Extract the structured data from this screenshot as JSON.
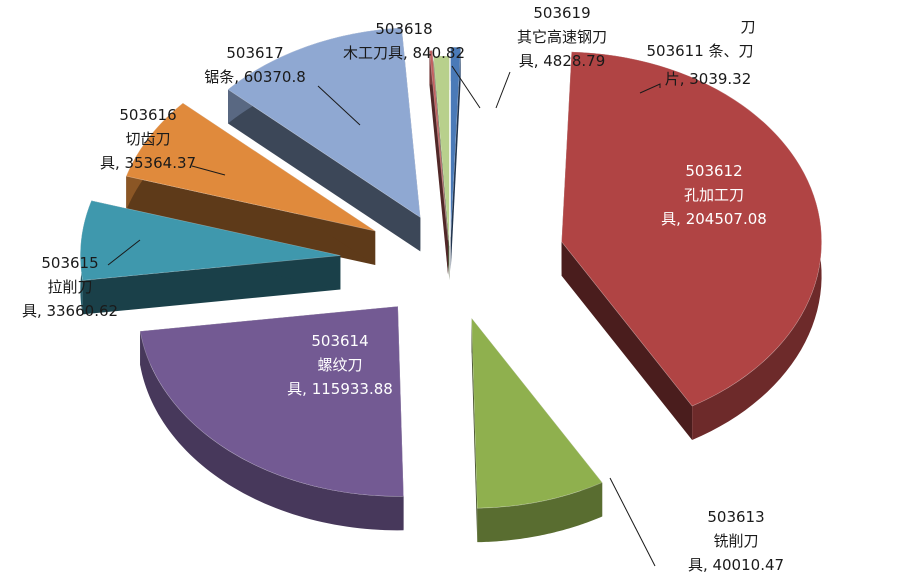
{
  "chart_data": {
    "type": "pie",
    "variant": "3d-exploded",
    "title": "",
    "slices": [
      {
        "code": "503611",
        "name": "刀条、刀片",
        "value": 3039.32,
        "color": "#4a7ab8",
        "label_lines": [
          "刀",
          "503611 条、刀",
          "片, 3039.32"
        ]
      },
      {
        "code": "503612",
        "name": "孔加工刀具",
        "value": 204507.08,
        "color": "#b04444",
        "label_lines": [
          "503612",
          "孔加工刀",
          "具, 204507.08"
        ]
      },
      {
        "code": "503613",
        "name": "铣削刀具",
        "value": 40010.47,
        "color": "#8fb04e",
        "label_lines": [
          "503613",
          "铣削刀",
          "具, 40010.47"
        ]
      },
      {
        "code": "503614",
        "name": "螺纹刀具",
        "value": 115933.88,
        "color": "#735a93",
        "label_lines": [
          "503614",
          "螺纹刀",
          "具, 115933.88"
        ]
      },
      {
        "code": "503615",
        "name": "拉削刀具",
        "value": 33660.62,
        "color": "#3f98ad",
        "label_lines": [
          "503615",
          "拉削刀",
          "具, 33660.62"
        ]
      },
      {
        "code": "503616",
        "name": "切齿刀具",
        "value": 35364.37,
        "color": "#e08a3c",
        "label_lines": [
          "503616",
          "切齿刀",
          "具, 35364.37"
        ]
      },
      {
        "code": "503617",
        "name": "锯条",
        "value": 60370.8,
        "color": "#8fa8d2",
        "label_lines": [
          "503617",
          "锯条, 60370.8"
        ]
      },
      {
        "code": "503618",
        "name": "木工刀具",
        "value": 840.82,
        "color": "#c06060",
        "label_lines": [
          "503618",
          "木工刀具, 840.82"
        ]
      },
      {
        "code": "503619",
        "name": "其它高速钢刀具",
        "value": 4828.79,
        "color": "#b8d08c",
        "label_lines": [
          "503619",
          "其它高速钢刀",
          "具, 4828.79"
        ]
      }
    ]
  }
}
